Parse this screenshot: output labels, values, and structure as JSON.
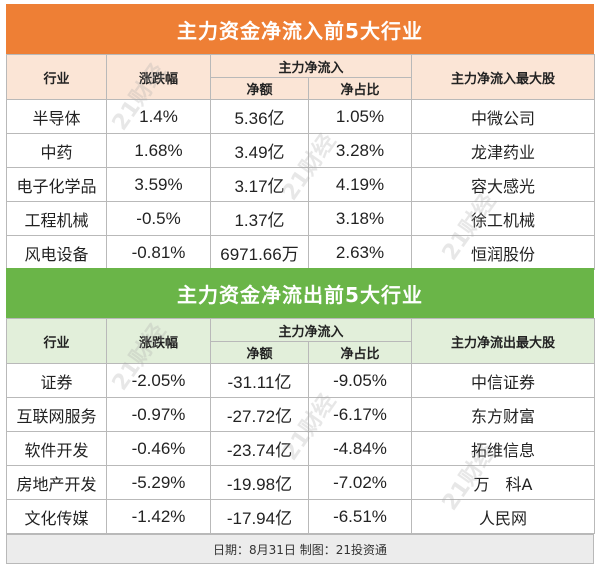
{
  "inflow": {
    "title": "主力资金净流入前5大行业",
    "headers": {
      "industry": "行业",
      "change": "涨跌幅",
      "main_flow": "主力净流入",
      "net_amount": "净额",
      "net_ratio": "净占比",
      "top_stock": "主力净流入最大股"
    },
    "rows": [
      {
        "industry": "半导体",
        "change": "1.4%",
        "net_amount": "5.36亿",
        "net_ratio": "1.05%",
        "top_stock": "中微公司"
      },
      {
        "industry": "中药",
        "change": "1.68%",
        "net_amount": "3.49亿",
        "net_ratio": "3.28%",
        "top_stock": "龙津药业"
      },
      {
        "industry": "电子化学品",
        "change": "3.59%",
        "net_amount": "3.17亿",
        "net_ratio": "4.19%",
        "top_stock": "容大感光"
      },
      {
        "industry": "工程机械",
        "change": "-0.5%",
        "net_amount": "1.37亿",
        "net_ratio": "3.18%",
        "top_stock": "徐工机械"
      },
      {
        "industry": "风电设备",
        "change": "-0.81%",
        "net_amount": "6971.66万",
        "net_ratio": "2.63%",
        "top_stock": "恒润股份"
      }
    ]
  },
  "outflow": {
    "title": "主力资金净流出前5大行业",
    "headers": {
      "industry": "行业",
      "change": "涨跌幅",
      "main_flow": "主力净流入",
      "net_amount": "净额",
      "net_ratio": "净占比",
      "top_stock": "主力净流出最大股"
    },
    "rows": [
      {
        "industry": "证券",
        "change": "-2.05%",
        "net_amount": "-31.11亿",
        "net_ratio": "-9.05%",
        "top_stock": "中信证券"
      },
      {
        "industry": "互联网服务",
        "change": "-0.97%",
        "net_amount": "-27.72亿",
        "net_ratio": "-6.17%",
        "top_stock": "东方财富"
      },
      {
        "industry": "软件开发",
        "change": "-0.46%",
        "net_amount": "-23.74亿",
        "net_ratio": "-4.84%",
        "top_stock": "拓维信息"
      },
      {
        "industry": "房地产开发",
        "change": "-5.29%",
        "net_amount": "-19.98亿",
        "net_ratio": "-7.02%",
        "top_stock": "万　科A"
      },
      {
        "industry": "文化传媒",
        "change": "-1.42%",
        "net_amount": "-17.94亿",
        "net_ratio": "-6.51%",
        "top_stock": "人民网"
      }
    ]
  },
  "footer": "日期：8月31日  制图：21投资通",
  "watermark": "21财经",
  "colors": {
    "inflow_banner": "#ee7f35",
    "inflow_header": "#fbe5d6",
    "outflow_banner": "#6ab548",
    "outflow_header": "#e2efda"
  }
}
